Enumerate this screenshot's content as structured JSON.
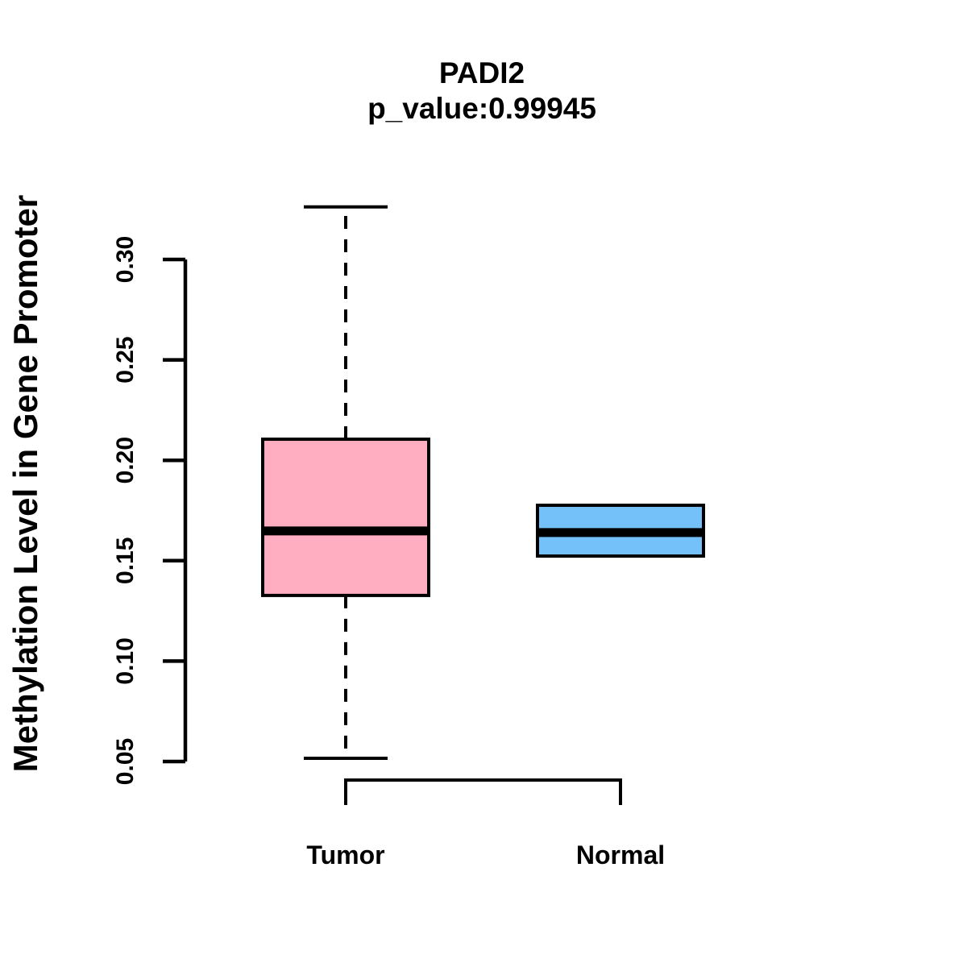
{
  "figure": {
    "title": "PADI2",
    "subtitle": "p_value:0.99945",
    "ylabel": "Methylation Level in Gene Promoter"
  },
  "chart_data": {
    "type": "boxplot",
    "title": "PADI2",
    "subtitle": "p_value:0.99945",
    "xlabel": "",
    "ylabel": "Methylation Level in Gene Promoter",
    "categories": [
      "Tumor",
      "Normal"
    ],
    "ylim": [
      0.05,
      0.3
    ],
    "yticks": [
      0.05,
      0.1,
      0.15,
      0.2,
      0.25,
      0.3
    ],
    "ytick_labels": [
      "0.05",
      "0.10",
      "0.15",
      "0.20",
      "0.25",
      "0.30"
    ],
    "grid": false,
    "legend": null,
    "series": [
      {
        "name": "Tumor",
        "fill_color": "#FFADC0",
        "border_color": "#000000",
        "whisker_low": 0.0516,
        "q1": 0.1327,
        "median": 0.1648,
        "q3": 0.2105,
        "whisker_high": 0.3262,
        "whisker_style": "dashed"
      },
      {
        "name": "Normal",
        "fill_color": "#74C0F8",
        "border_color": "#000000",
        "whisker_low": null,
        "q1": 0.1523,
        "median": 0.164,
        "q3": 0.1776,
        "whisker_high": null,
        "whisker_style": "dashed"
      }
    ]
  }
}
